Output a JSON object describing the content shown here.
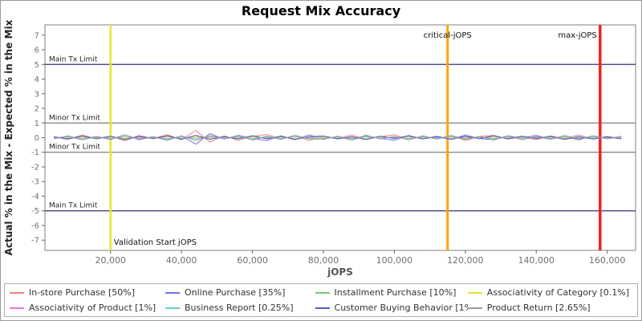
{
  "title": "Request Mix Accuracy",
  "axes": {
    "x_label": "jOPS",
    "y_label": "Actual % in the Mix - Expected % in the Mix",
    "x_range": [
      1500,
      168000
    ],
    "y_range": [
      -7.7,
      7.7
    ],
    "x_ticks": [
      {
        "value": 20000,
        "label": "20,000"
      },
      {
        "value": 40000,
        "label": "40,000"
      },
      {
        "value": 60000,
        "label": "60,000"
      },
      {
        "value": 80000,
        "label": "80,000"
      },
      {
        "value": 100000,
        "label": "100,000"
      },
      {
        "value": 120000,
        "label": "120,000"
      },
      {
        "value": 140000,
        "label": "140,000"
      },
      {
        "value": 160000,
        "label": "160,000"
      }
    ],
    "y_ticks": [
      7,
      6,
      5,
      4,
      3,
      2,
      1,
      0,
      -1,
      -2,
      -3,
      -4,
      -5,
      -6,
      -7
    ]
  },
  "reference_lines": {
    "horizontal": [
      {
        "label": "Main Tx Limit",
        "y": 5,
        "color": "#333377"
      },
      {
        "label": "Minor Tx Limit",
        "y": 1,
        "color": "#7f7f7f"
      },
      {
        "label": "Minor Tx Limit",
        "y": -1,
        "color": "#7f7f7f"
      },
      {
        "label": "Main Tx Limit",
        "y": -5,
        "color": "#333377"
      }
    ],
    "vertical": [
      {
        "label": "Validation Start jOPS",
        "x": 20000,
        "color": "#e6e632",
        "width": 2.5,
        "align": "start",
        "label_pos": "bottom"
      },
      {
        "label": "critical-jOPS",
        "x": 115000,
        "color": "#ffa500",
        "width": 3,
        "align": "middle",
        "label_pos": "top"
      },
      {
        "label": "max-jOPS",
        "x": 158000,
        "color": "#ee2222",
        "width": 3.5,
        "align": "end",
        "label_pos": "top"
      }
    ]
  },
  "chart_data": {
    "type": "line",
    "title": "Request Mix Accuracy",
    "xlabel": "jOPS",
    "ylabel": "Actual % in the Mix - Expected % in the Mix",
    "xlim": [
      1500,
      168000
    ],
    "ylim": [
      -7.7,
      7.7
    ],
    "legend_position": "bottom",
    "grid": false,
    "x": [
      4000,
      8000,
      12000,
      16000,
      20000,
      24000,
      28000,
      32000,
      36000,
      40000,
      44000,
      48000,
      52000,
      56000,
      60000,
      64000,
      68000,
      72000,
      76000,
      80000,
      84000,
      88000,
      92000,
      96000,
      100000,
      104000,
      108000,
      112000,
      116000,
      120000,
      124000,
      128000,
      132000,
      136000,
      140000,
      144000,
      148000,
      152000,
      156000,
      160000,
      164000
    ],
    "series": [
      {
        "name": "In-store Purchase [50%]",
        "color": "#f08080",
        "values": [
          0.05,
          -0.12,
          0.18,
          -0.08,
          0.1,
          -0.22,
          0.15,
          -0.05,
          0.2,
          -0.15,
          0.48,
          -0.3,
          0.12,
          -0.18,
          0.08,
          0.22,
          -0.1,
          0.15,
          -0.2,
          0.1,
          -0.05,
          0.18,
          -0.12,
          0.06,
          0.2,
          -0.15,
          0.1,
          -0.08,
          0.14,
          -0.2,
          0.08,
          0.16,
          -0.1,
          0.05,
          -0.15,
          0.12,
          -0.06,
          0.18,
          -0.1,
          0.08,
          -0.05
        ]
      },
      {
        "name": "Online Purchase [35%]",
        "color": "#7070e0",
        "values": [
          -0.06,
          0.1,
          -0.15,
          0.07,
          -0.12,
          0.2,
          -0.14,
          0.06,
          -0.18,
          0.12,
          -0.45,
          0.28,
          -0.1,
          0.16,
          -0.07,
          -0.2,
          0.12,
          -0.14,
          0.18,
          -0.08,
          0.06,
          -0.16,
          0.1,
          -0.05,
          -0.18,
          0.14,
          -0.08,
          0.1,
          -0.12,
          0.18,
          -0.06,
          -0.14,
          0.12,
          -0.04,
          0.16,
          -0.1,
          0.07,
          -0.15,
          0.12,
          -0.06,
          0.04
        ]
      },
      {
        "name": "Installment Purchase [10%]",
        "color": "#77cc77",
        "values": [
          0.04,
          -0.07,
          0.09,
          -0.05,
          0.08,
          -0.1,
          0.06,
          -0.04,
          0.1,
          -0.08,
          0.12,
          -0.09,
          0.05,
          -0.06,
          0.1,
          -0.05,
          0.07,
          -0.09,
          0.04,
          0.08,
          -0.06,
          0.05,
          -0.1,
          0.07,
          -0.04,
          0.09,
          -0.07,
          0.05,
          -0.08,
          0.06,
          -0.05,
          0.1,
          -0.06,
          0.08,
          -0.04,
          0.06,
          -0.09,
          0.05,
          -0.07,
          0.04,
          -0.06
        ]
      },
      {
        "name": "Associativity of Category [0.1%]",
        "color": "#e0e030",
        "values": [
          0.01,
          -0.02,
          0.02,
          -0.01,
          0.02,
          -0.03,
          0.01,
          0.02,
          -0.02,
          0.03,
          -0.01,
          0.02,
          -0.03,
          0.01,
          -0.02,
          0.02,
          -0.01,
          0.03,
          -0.02,
          0.01,
          0.02,
          -0.03,
          0.02,
          -0.01,
          0.02,
          -0.02,
          0.01,
          -0.03,
          0.02,
          -0.01,
          0.03,
          -0.02,
          0.01,
          -0.02,
          0.02,
          -0.01,
          0.02,
          -0.03,
          0.01,
          -0.02,
          0.02
        ]
      },
      {
        "name": "Associativity of Product [1%]",
        "color": "#e878e8",
        "values": [
          0.05,
          -0.08,
          0.1,
          -0.06,
          0.09,
          -0.12,
          0.07,
          -0.05,
          0.11,
          -0.09,
          0.14,
          -0.1,
          0.06,
          -0.08,
          0.12,
          -0.07,
          0.09,
          -0.11,
          0.05,
          0.1,
          -0.08,
          0.06,
          -0.12,
          0.09,
          -0.05,
          0.11,
          -0.08,
          0.06,
          -0.1,
          0.08,
          -0.06,
          0.12,
          -0.07,
          0.09,
          -0.05,
          0.08,
          -0.11,
          0.06,
          -0.09,
          0.05,
          -0.07
        ]
      },
      {
        "name": "Business Report [0.25%]",
        "color": "#66cccc",
        "values": [
          -0.03,
          0.05,
          -0.06,
          0.04,
          -0.05,
          0.07,
          -0.04,
          0.03,
          -0.07,
          0.05,
          -0.08,
          0.06,
          -0.04,
          0.05,
          -0.07,
          0.04,
          -0.05,
          0.06,
          -0.03,
          -0.05,
          0.04,
          -0.06,
          0.07,
          -0.04,
          0.03,
          -0.06,
          0.05,
          -0.04,
          0.07,
          -0.05,
          0.04,
          -0.07,
          0.05,
          -0.06,
          0.03,
          -0.05,
          0.06,
          -0.04,
          0.05,
          -0.03,
          0.04
        ]
      },
      {
        "name": "Customer Buying Behavior [1%]",
        "color": "#5858c8",
        "values": [
          0.06,
          -0.09,
          0.11,
          -0.07,
          0.1,
          -0.13,
          0.08,
          -0.06,
          0.12,
          -0.1,
          0.15,
          -0.11,
          0.07,
          -0.09,
          0.13,
          -0.08,
          0.1,
          -0.12,
          0.06,
          0.11,
          -0.09,
          0.07,
          -0.13,
          0.1,
          -0.06,
          0.12,
          -0.09,
          0.07,
          -0.11,
          0.09,
          -0.07,
          0.13,
          -0.08,
          0.1,
          -0.06,
          0.09,
          -0.12,
          0.07,
          -0.1,
          0.06,
          -0.08
        ]
      },
      {
        "name": "Product Return [2.65%]",
        "color": "#9a9a9a",
        "values": [
          -0.08,
          0.12,
          -0.15,
          0.09,
          -0.13,
          0.18,
          -0.11,
          0.07,
          -0.16,
          0.12,
          -0.2,
          0.15,
          -0.09,
          0.13,
          -0.17,
          0.1,
          -0.12,
          0.16,
          -0.08,
          -0.12,
          0.1,
          -0.15,
          0.17,
          -0.09,
          0.08,
          -0.14,
          0.12,
          -0.1,
          0.16,
          -0.12,
          0.09,
          -0.17,
          0.12,
          -0.14,
          0.08,
          -0.12,
          0.15,
          -0.1,
          0.12,
          -0.08,
          0.1
        ]
      }
    ]
  }
}
